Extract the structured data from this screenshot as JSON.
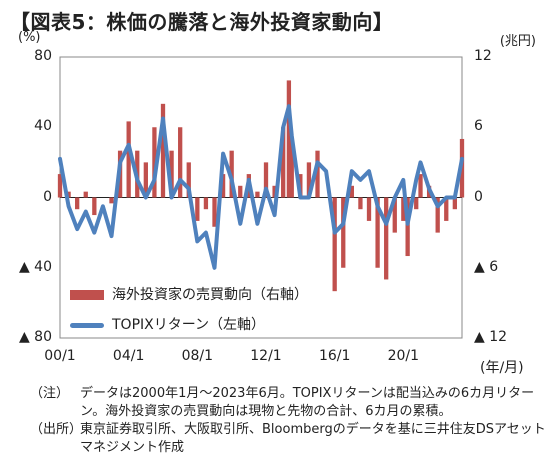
{
  "title": "【図表5：株価の騰落と海外投資家動向】",
  "left_unit": "(%)",
  "right_unit": "(兆円)",
  "x_unit": "(年/月)",
  "left_ticks": [
    "80",
    "40",
    "0",
    "▲ 40",
    "▲ 80"
  ],
  "right_ticks": [
    "12",
    "6",
    "0",
    "▲ 6",
    "▲ 12"
  ],
  "x_ticks": [
    "00/1",
    "04/1",
    "08/1",
    "12/1",
    "16/1",
    "20/1"
  ],
  "legend": {
    "bar": "海外投資家の売買動向（右軸）",
    "line": "TOPIXリターン（左軸）"
  },
  "notes": [
    {
      "head": "（注）",
      "text": "データは2000年1月～2023年6月。TOPIXリターンは配当込みの6カ月リターン。海外投資家の売買動向は現物と先物の合計、6カ月の累積。"
    },
    {
      "head": "（出所）",
      "text": "東京証券取引所、大阪取引所、Bloombergのデータを基に三井住友DSアセットマネジメント作成"
    }
  ],
  "colors": {
    "bar": "#c0504d",
    "line": "#4f81bd"
  },
  "chart_data": {
    "type": "bar+line",
    "x_range": [
      "2000-01",
      "2023-06"
    ],
    "left_axis": {
      "label": "(%)",
      "range": [
        -80,
        80
      ]
    },
    "right_axis": {
      "label": "(兆円)",
      "range": [
        -12,
        12
      ]
    },
    "series": [
      {
        "name": "TOPIXリターン（左軸）",
        "axis": "left",
        "type": "line",
        "points": [
          [
            "2000-01",
            22
          ],
          [
            "2000-07",
            -5
          ],
          [
            "2001-01",
            -18
          ],
          [
            "2001-07",
            -8
          ],
          [
            "2002-01",
            -20
          ],
          [
            "2002-07",
            -5
          ],
          [
            "2003-01",
            -22
          ],
          [
            "2003-07",
            20
          ],
          [
            "2004-01",
            30
          ],
          [
            "2004-07",
            10
          ],
          [
            "2005-01",
            0
          ],
          [
            "2005-07",
            10
          ],
          [
            "2006-01",
            45
          ],
          [
            "2006-07",
            0
          ],
          [
            "2007-01",
            10
          ],
          [
            "2007-07",
            5
          ],
          [
            "2008-01",
            -25
          ],
          [
            "2008-07",
            -20
          ],
          [
            "2009-01",
            -40
          ],
          [
            "2009-07",
            25
          ],
          [
            "2010-01",
            10
          ],
          [
            "2010-07",
            -15
          ],
          [
            "2011-01",
            10
          ],
          [
            "2011-07",
            -15
          ],
          [
            "2012-01",
            5
          ],
          [
            "2012-07",
            -10
          ],
          [
            "2013-01",
            40
          ],
          [
            "2013-05",
            52
          ],
          [
            "2013-07",
            35
          ],
          [
            "2014-01",
            0
          ],
          [
            "2014-07",
            0
          ],
          [
            "2015-01",
            20
          ],
          [
            "2015-07",
            15
          ],
          [
            "2016-01",
            -20
          ],
          [
            "2016-07",
            -15
          ],
          [
            "2017-01",
            15
          ],
          [
            "2017-07",
            10
          ],
          [
            "2018-01",
            15
          ],
          [
            "2018-07",
            -5
          ],
          [
            "2019-01",
            -15
          ],
          [
            "2019-07",
            0
          ],
          [
            "2020-01",
            10
          ],
          [
            "2020-04",
            -15
          ],
          [
            "2020-10",
            10
          ],
          [
            "2021-01",
            20
          ],
          [
            "2021-07",
            5
          ],
          [
            "2022-01",
            -5
          ],
          [
            "2022-07",
            0
          ],
          [
            "2023-01",
            0
          ],
          [
            "2023-06",
            22
          ]
        ]
      },
      {
        "name": "海外投資家の売買動向（右軸）",
        "axis": "right",
        "type": "bar",
        "points": [
          [
            "2000-01",
            2.0
          ],
          [
            "2000-07",
            0.5
          ],
          [
            "2001-01",
            -1.0
          ],
          [
            "2001-07",
            0.5
          ],
          [
            "2002-01",
            -1.5
          ],
          [
            "2002-07",
            0.0
          ],
          [
            "2003-01",
            -0.5
          ],
          [
            "2003-07",
            4.0
          ],
          [
            "2004-01",
            6.5
          ],
          [
            "2004-07",
            4.0
          ],
          [
            "2005-01",
            3.0
          ],
          [
            "2005-07",
            6.0
          ],
          [
            "2006-01",
            8.0
          ],
          [
            "2006-07",
            4.0
          ],
          [
            "2007-01",
            6.0
          ],
          [
            "2007-07",
            3.0
          ],
          [
            "2008-01",
            -2.0
          ],
          [
            "2008-07",
            -1.0
          ],
          [
            "2009-01",
            -2.5
          ],
          [
            "2009-07",
            2.0
          ],
          [
            "2010-01",
            4.0
          ],
          [
            "2010-07",
            1.0
          ],
          [
            "2011-01",
            2.0
          ],
          [
            "2011-07",
            0.5
          ],
          [
            "2012-01",
            3.0
          ],
          [
            "2012-07",
            1.0
          ],
          [
            "2013-01",
            6.0
          ],
          [
            "2013-05",
            10.0
          ],
          [
            "2013-07",
            5.0
          ],
          [
            "2014-01",
            2.0
          ],
          [
            "2014-07",
            3.0
          ],
          [
            "2015-01",
            4.0
          ],
          [
            "2015-07",
            0.0
          ],
          [
            "2016-01",
            -8.0
          ],
          [
            "2016-07",
            -6.0
          ],
          [
            "2017-01",
            1.0
          ],
          [
            "2017-07",
            -1.0
          ],
          [
            "2018-01",
            -2.0
          ],
          [
            "2018-07",
            -6.0
          ],
          [
            "2019-01",
            -7.0
          ],
          [
            "2019-07",
            -3.0
          ],
          [
            "2020-01",
            -2.0
          ],
          [
            "2020-04",
            -5.0
          ],
          [
            "2020-10",
            -1.0
          ],
          [
            "2021-01",
            2.0
          ],
          [
            "2021-07",
            1.0
          ],
          [
            "2022-01",
            -3.0
          ],
          [
            "2022-07",
            -2.0
          ],
          [
            "2023-01",
            -1.0
          ],
          [
            "2023-06",
            5.0
          ]
        ]
      }
    ]
  }
}
